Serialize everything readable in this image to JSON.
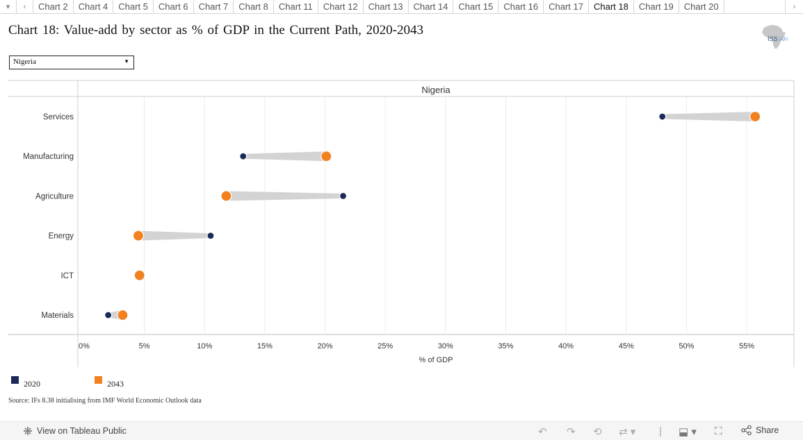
{
  "tabs": {
    "items": [
      "Chart 2",
      "Chart 4",
      "Chart 5",
      "Chart 6",
      "Chart 7",
      "Chart 8",
      "Chart 11",
      "Chart 12",
      "Chart 13",
      "Chart 14",
      "Chart 15",
      "Chart 16",
      "Chart 17",
      "Chart 18",
      "Chart 19",
      "Chart 20"
    ],
    "active": "Chart 18"
  },
  "title": "Chart 18: Value-add by sector as % of GDP in the Current Path, 2020-2043",
  "logo": {
    "text_main": "ISS",
    "text_sub": "AFI"
  },
  "selector": {
    "value": "Nigeria"
  },
  "legend": [
    {
      "label": "2020",
      "color": "#1b2a57"
    },
    {
      "label": "2043",
      "color": "#f2811f"
    }
  ],
  "source": "Source: IFs 8.38 initialising from IMF World Economic Outlook data",
  "footer": {
    "view_label": "View on Tableau Public",
    "share_label": "Share"
  },
  "icons": {
    "view": "tableau-icon",
    "undo": "undo-icon",
    "redo": "redo-icon",
    "revert": "revert-icon",
    "refresh": "refresh-icon",
    "download": "download-icon",
    "fullscreen": "fullscreen-icon",
    "share": "share-icon"
  },
  "chart_data": {
    "type": "dumbbell",
    "panel_title": "Nigeria",
    "categories": [
      "Services",
      "Manufacturing",
      "Agriculture",
      "Energy",
      "ICT",
      "Materials"
    ],
    "series": [
      {
        "name": "2020",
        "color": "#1b2a57",
        "values": [
          48.0,
          13.2,
          21.5,
          10.5,
          4.5,
          2.0
        ]
      },
      {
        "name": "2043",
        "color": "#f2811f",
        "values": [
          55.7,
          20.1,
          11.8,
          4.5,
          4.6,
          3.2
        ]
      }
    ],
    "xlabel": "% of GDP",
    "xlim": [
      0,
      58.7
    ],
    "xticks": [
      0,
      5,
      10,
      15,
      20,
      25,
      30,
      35,
      40,
      45,
      50,
      55
    ],
    "xtick_labels": [
      "0%",
      "5%",
      "10%",
      "15%",
      "20%",
      "25%",
      "30%",
      "35%",
      "40%",
      "45%",
      "50%",
      "55%"
    ],
    "grid": true,
    "legend_position": "bottom-left"
  }
}
